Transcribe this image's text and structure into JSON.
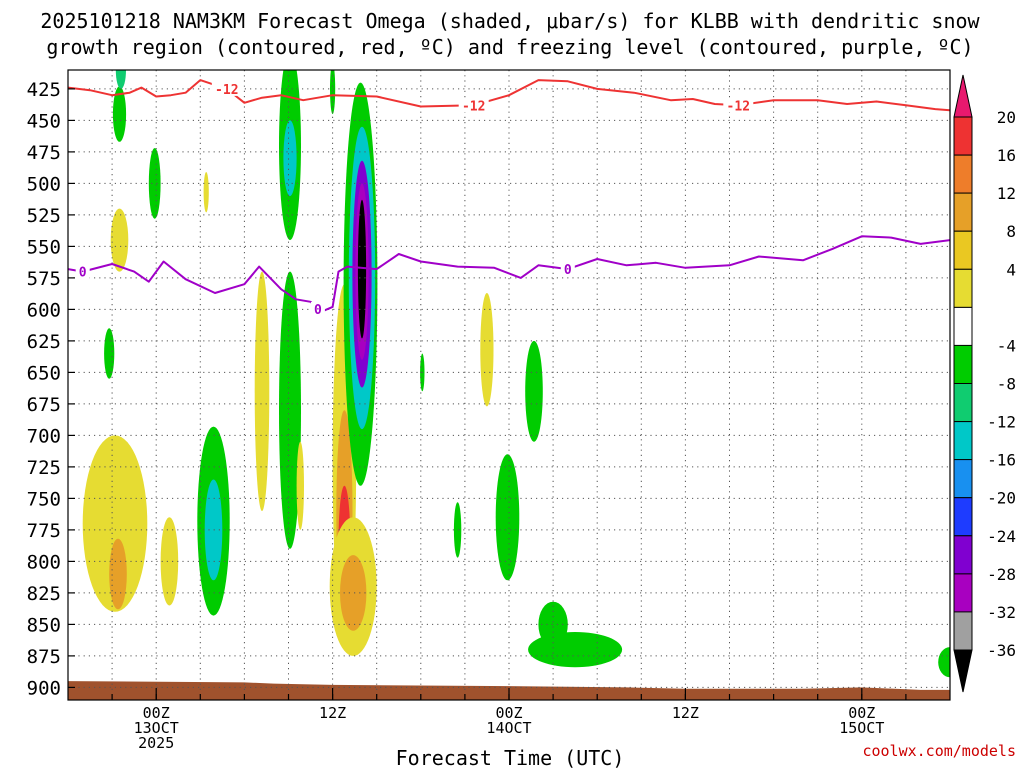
{
  "title": {
    "line1": "2025101218 NAM3KM Forecast Omega (shaded, μbar/s) for KLBB with dendritic snow",
    "line2": "growth region (contoured, red, ºC) and freezing level (contoured, purple, ºC)"
  },
  "footer": {
    "credit": "coolwx.com/models"
  },
  "colors": {
    "dgz_contour": "#ee3333",
    "freezing_contour": "#a000c8",
    "terrain": "#a0522d",
    "text": "#000000",
    "credit": "#cc0000"
  },
  "chart_data": {
    "type": "heatmap",
    "title": "2025101218 NAM3KM Forecast Omega (shaded, μbar/s) for KLBB with dendritic snow growth region (contoured, red, ºC) and freezing level (contoured, purple, ºC)",
    "xlabel": "Forecast Time (UTC)",
    "ylabel": "",
    "x_range_hours": [
      0,
      60
    ],
    "y_range_hpa": [
      410,
      910
    ],
    "x_ticks": [
      {
        "hour": 6,
        "line1": "00Z",
        "line2": "13OCT",
        "line3": "2025"
      },
      {
        "hour": 18,
        "line1": "12Z",
        "line2": "",
        "line3": ""
      },
      {
        "hour": 30,
        "line1": "00Z",
        "line2": "14OCT",
        "line3": ""
      },
      {
        "hour": 42,
        "line1": "12Z",
        "line2": "",
        "line3": ""
      },
      {
        "hour": 54,
        "line1": "00Z",
        "line2": "15OCT",
        "line3": ""
      }
    ],
    "y_ticks": [
      "425",
      "450",
      "475",
      "500",
      "525",
      "550",
      "575",
      "600",
      "625",
      "650",
      "675",
      "700",
      "725",
      "750",
      "775",
      "800",
      "825",
      "850",
      "875",
      "900"
    ],
    "colorbar": {
      "labels": [
        "20",
        "16",
        "12",
        "8",
        "4",
        "-4",
        "-8",
        "-12",
        "-16",
        "-20",
        "-24",
        "-28",
        "-32",
        "-36"
      ],
      "colors": [
        "#e8196e",
        "#ee3232",
        "#ee7d2a",
        "#e6a028",
        "#eac822",
        "#e6dc32",
        "#ffffff",
        "#00cc00",
        "#10cc70",
        "#00c8c8",
        "#1890f0",
        "#1e3cff",
        "#8000d0",
        "#a800c0",
        "#a0a0a0",
        "#000000"
      ]
    },
    "series": [
      {
        "name": "dendritic snow growth region",
        "contour_label": "-12",
        "label_hours": [
          10.8,
          27.6,
          45.6
        ],
        "points": [
          {
            "hour": 0.0,
            "hpa": 424
          },
          {
            "hour": 1.5,
            "hpa": 426
          },
          {
            "hour": 3.0,
            "hpa": 430
          },
          {
            "hour": 4.2,
            "hpa": 428
          },
          {
            "hour": 5.0,
            "hpa": 424
          },
          {
            "hour": 6.0,
            "hpa": 431
          },
          {
            "hour": 7.0,
            "hpa": 430
          },
          {
            "hour": 8.0,
            "hpa": 428
          },
          {
            "hour": 9.0,
            "hpa": 418
          },
          {
            "hour": 10.8,
            "hpa": 425
          },
          {
            "hour": 12.0,
            "hpa": 436
          },
          {
            "hour": 13.2,
            "hpa": 432
          },
          {
            "hour": 14.5,
            "hpa": 430
          },
          {
            "hour": 16.0,
            "hpa": 434
          },
          {
            "hour": 18.0,
            "hpa": 430
          },
          {
            "hour": 21.0,
            "hpa": 431
          },
          {
            "hour": 24.0,
            "hpa": 439
          },
          {
            "hour": 27.6,
            "hpa": 438
          },
          {
            "hour": 30.0,
            "hpa": 430
          },
          {
            "hour": 32.0,
            "hpa": 418
          },
          {
            "hour": 34.0,
            "hpa": 419
          },
          {
            "hour": 36.0,
            "hpa": 425
          },
          {
            "hour": 38.5,
            "hpa": 428
          },
          {
            "hour": 41.0,
            "hpa": 434
          },
          {
            "hour": 42.5,
            "hpa": 433
          },
          {
            "hour": 44.0,
            "hpa": 437
          },
          {
            "hour": 45.6,
            "hpa": 438
          },
          {
            "hour": 48.0,
            "hpa": 434
          },
          {
            "hour": 51.0,
            "hpa": 434
          },
          {
            "hour": 53.0,
            "hpa": 437
          },
          {
            "hour": 55.0,
            "hpa": 435
          },
          {
            "hour": 57.0,
            "hpa": 438
          },
          {
            "hour": 59.0,
            "hpa": 441
          },
          {
            "hour": 60.0,
            "hpa": 442
          }
        ]
      },
      {
        "name": "freezing level",
        "contour_label": "0",
        "label_hours": [
          1.0,
          17.0,
          34.0
        ],
        "points": [
          {
            "hour": 0.0,
            "hpa": 568
          },
          {
            "hour": 1.0,
            "hpa": 570
          },
          {
            "hour": 3.0,
            "hpa": 564
          },
          {
            "hour": 4.5,
            "hpa": 570
          },
          {
            "hour": 5.5,
            "hpa": 578
          },
          {
            "hour": 6.5,
            "hpa": 562
          },
          {
            "hour": 8.0,
            "hpa": 576
          },
          {
            "hour": 10.0,
            "hpa": 587
          },
          {
            "hour": 12.0,
            "hpa": 580
          },
          {
            "hour": 13.0,
            "hpa": 566
          },
          {
            "hour": 14.5,
            "hpa": 584
          },
          {
            "hour": 15.5,
            "hpa": 592
          },
          {
            "hour": 16.5,
            "hpa": 594
          },
          {
            "hour": 17.2,
            "hpa": 602
          },
          {
            "hour": 18.0,
            "hpa": 598
          },
          {
            "hour": 18.4,
            "hpa": 570
          },
          {
            "hour": 19.0,
            "hpa": 566
          },
          {
            "hour": 21.0,
            "hpa": 568
          },
          {
            "hour": 22.5,
            "hpa": 556
          },
          {
            "hour": 24.0,
            "hpa": 562
          },
          {
            "hour": 26.5,
            "hpa": 566
          },
          {
            "hour": 29.0,
            "hpa": 567
          },
          {
            "hour": 30.8,
            "hpa": 575
          },
          {
            "hour": 32.0,
            "hpa": 565
          },
          {
            "hour": 34.0,
            "hpa": 568
          },
          {
            "hour": 36.0,
            "hpa": 560
          },
          {
            "hour": 38.0,
            "hpa": 565
          },
          {
            "hour": 40.0,
            "hpa": 563
          },
          {
            "hour": 42.0,
            "hpa": 567
          },
          {
            "hour": 45.0,
            "hpa": 565
          },
          {
            "hour": 47.0,
            "hpa": 558
          },
          {
            "hour": 50.0,
            "hpa": 561
          },
          {
            "hour": 52.0,
            "hpa": 552
          },
          {
            "hour": 54.0,
            "hpa": 542
          },
          {
            "hour": 56.0,
            "hpa": 543
          },
          {
            "hour": 58.0,
            "hpa": 548
          },
          {
            "hour": 60.0,
            "hpa": 545
          }
        ]
      }
    ],
    "omega_features": [
      {
        "hour": 3.5,
        "hpa": 445,
        "dh": 0.45,
        "dp": 22,
        "value": -6
      },
      {
        "hour": 3.6,
        "hpa": 410,
        "dh": 0.35,
        "dp": 15,
        "value": -10
      },
      {
        "hour": 5.9,
        "hpa": 500,
        "dh": 0.4,
        "dp": 28,
        "value": -6
      },
      {
        "hour": 3.5,
        "hpa": 545,
        "dh": 0.6,
        "dp": 25,
        "value": 6
      },
      {
        "hour": 9.4,
        "hpa": 507,
        "dh": 0.18,
        "dp": 16,
        "value": 5
      },
      {
        "hour": 2.8,
        "hpa": 635,
        "dh": 0.35,
        "dp": 20,
        "value": -5
      },
      {
        "hour": 3.2,
        "hpa": 770,
        "dh": 2.2,
        "dp": 70,
        "value": 5
      },
      {
        "hour": 3.4,
        "hpa": 810,
        "dh": 0.6,
        "dp": 28,
        "value": 10
      },
      {
        "hour": 6.9,
        "hpa": 800,
        "dh": 0.6,
        "dp": 35,
        "value": 5
      },
      {
        "hour": 9.9,
        "hpa": 768,
        "dh": 1.1,
        "dp": 75,
        "value": -6
      },
      {
        "hour": 9.9,
        "hpa": 775,
        "dh": 0.6,
        "dp": 40,
        "value": -12
      },
      {
        "hour": 13.2,
        "hpa": 665,
        "dh": 0.5,
        "dp": 95,
        "value": 5
      },
      {
        "hour": 15.1,
        "hpa": 470,
        "dh": 0.75,
        "dp": 75,
        "value": -6
      },
      {
        "hour": 15.1,
        "hpa": 480,
        "dh": 0.45,
        "dp": 30,
        "value": -14
      },
      {
        "hour": 15.1,
        "hpa": 680,
        "dh": 0.75,
        "dp": 110,
        "value": -6
      },
      {
        "hour": 15.8,
        "hpa": 740,
        "dh": 0.25,
        "dp": 35,
        "value": 5
      },
      {
        "hour": 18.0,
        "hpa": 425,
        "dh": 0.18,
        "dp": 20,
        "value": -6
      },
      {
        "hour": 18.8,
        "hpa": 720,
        "dh": 0.8,
        "dp": 140,
        "value": 6
      },
      {
        "hour": 18.8,
        "hpa": 760,
        "dh": 0.55,
        "dp": 80,
        "value": 10
      },
      {
        "hour": 18.8,
        "hpa": 785,
        "dh": 0.4,
        "dp": 45,
        "value": 16
      },
      {
        "hour": 19.4,
        "hpa": 820,
        "dh": 1.6,
        "dp": 55,
        "value": 5
      },
      {
        "hour": 19.4,
        "hpa": 825,
        "dh": 0.9,
        "dp": 30,
        "value": 10
      },
      {
        "hour": 19.9,
        "hpa": 580,
        "dh": 1.15,
        "dp": 160,
        "value": -6
      },
      {
        "hour": 20.0,
        "hpa": 575,
        "dh": 0.9,
        "dp": 120,
        "value": -14
      },
      {
        "hour": 20.0,
        "hpa": 572,
        "dh": 0.65,
        "dp": 90,
        "value": -24
      },
      {
        "hour": 20.0,
        "hpa": 570,
        "dh": 0.45,
        "dp": 70,
        "value": -30
      },
      {
        "hour": 20.0,
        "hpa": 568,
        "dh": 0.28,
        "dp": 55,
        "value": -40
      },
      {
        "hour": 24.1,
        "hpa": 650,
        "dh": 0.15,
        "dp": 15,
        "value": -6
      },
      {
        "hour": 28.5,
        "hpa": 632,
        "dh": 0.45,
        "dp": 45,
        "value": 5
      },
      {
        "hour": 26.5,
        "hpa": 775,
        "dh": 0.25,
        "dp": 22,
        "value": -6
      },
      {
        "hour": 29.9,
        "hpa": 765,
        "dh": 0.8,
        "dp": 50,
        "value": -6
      },
      {
        "hour": 31.7,
        "hpa": 665,
        "dh": 0.6,
        "dp": 40,
        "value": -6
      },
      {
        "hour": 34.5,
        "hpa": 870,
        "dh": 3.2,
        "dp": 14,
        "value": -6
      },
      {
        "hour": 33.0,
        "hpa": 850,
        "dh": 1.0,
        "dp": 18,
        "value": -6
      },
      {
        "hour": 60.0,
        "hpa": 880,
        "dh": 0.8,
        "dp": 12,
        "value": -6
      }
    ],
    "terrain_surface": [
      {
        "hour": 0,
        "hpa": 895
      },
      {
        "hour": 12,
        "hpa": 896
      },
      {
        "hour": 14,
        "hpa": 897
      },
      {
        "hour": 18,
        "hpa": 898
      },
      {
        "hour": 30,
        "hpa": 899
      },
      {
        "hour": 38,
        "hpa": 900
      },
      {
        "hour": 42,
        "hpa": 901
      },
      {
        "hour": 50,
        "hpa": 901
      },
      {
        "hour": 54,
        "hpa": 900
      },
      {
        "hour": 58,
        "hpa": 902
      },
      {
        "hour": 60,
        "hpa": 902
      }
    ]
  }
}
